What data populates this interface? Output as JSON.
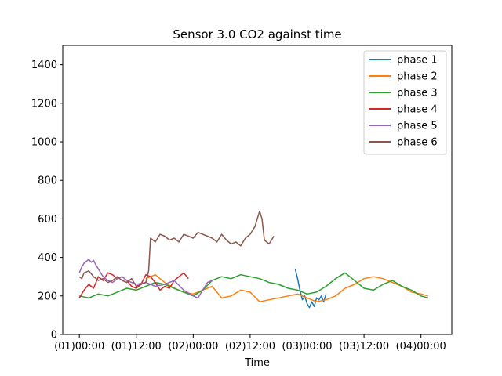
{
  "chart_data": {
    "type": "line",
    "title": "Sensor 3.0 CO2 against  time",
    "xlabel": "Time",
    "ylabel": "",
    "x_unit": "hours",
    "xlim": [
      -3.5,
      78.5
    ],
    "ylim": [
      0,
      1500
    ],
    "xticks": [
      {
        "value": 0,
        "label": "(01)00:00"
      },
      {
        "value": 12,
        "label": "(01)12:00"
      },
      {
        "value": 24,
        "label": "(02)00:00"
      },
      {
        "value": 36,
        "label": "(02)12:00"
      },
      {
        "value": 48,
        "label": "(03)00:00"
      },
      {
        "value": 60,
        "label": "(03)12:00"
      },
      {
        "value": 72,
        "label": "(04)00:00"
      }
    ],
    "yticks": [
      0,
      200,
      400,
      600,
      800,
      1000,
      1200,
      1400
    ],
    "grid": false,
    "legend_position": "top-right",
    "series": [
      {
        "name": "phase 1",
        "color": "#1f77b4",
        "x": [
          45.5,
          46,
          46.5,
          47,
          47.5,
          48,
          48.5,
          49,
          49.5,
          50,
          50.5,
          51,
          51.5,
          52
        ],
        "y": [
          340,
          290,
          230,
          180,
          200,
          160,
          140,
          170,
          145,
          190,
          180,
          200,
          170,
          210
        ]
      },
      {
        "name": "phase 2",
        "color": "#ff7f0e",
        "x": [
          14,
          16,
          18,
          20,
          22,
          24,
          26,
          28,
          30,
          32,
          34,
          36,
          38,
          40,
          42,
          44,
          46,
          48,
          50,
          52,
          54,
          56,
          58,
          60,
          62,
          64,
          66,
          68,
          70,
          72,
          73.5
        ],
        "y": [
          290,
          310,
          270,
          240,
          220,
          210,
          230,
          250,
          190,
          200,
          230,
          220,
          170,
          180,
          190,
          200,
          210,
          190,
          170,
          180,
          200,
          240,
          260,
          290,
          300,
          290,
          270,
          250,
          220,
          210,
          200
        ]
      },
      {
        "name": "phase 3",
        "color": "#2ca02c",
        "x": [
          0,
          2,
          4,
          6,
          8,
          10,
          12,
          14,
          16,
          18,
          20,
          22,
          24,
          26,
          28,
          30,
          32,
          34,
          36,
          38,
          40,
          42,
          44,
          46,
          48,
          50,
          52,
          54,
          56,
          58,
          60,
          62,
          64,
          66,
          68,
          70,
          72,
          73.5
        ],
        "y": [
          200,
          190,
          210,
          200,
          220,
          240,
          230,
          250,
          270,
          260,
          240,
          220,
          200,
          230,
          280,
          300,
          290,
          310,
          300,
          290,
          270,
          260,
          240,
          230,
          210,
          220,
          250,
          290,
          320,
          280,
          240,
          230,
          260,
          280,
          250,
          230,
          200,
          190
        ]
      },
      {
        "name": "phase 4",
        "color": "#d62728",
        "x": [
          0,
          1,
          2,
          3,
          4,
          5,
          6,
          7,
          8,
          9,
          10,
          11,
          12,
          13,
          14,
          15,
          16,
          17,
          18,
          19,
          20,
          21,
          22,
          23
        ],
        "y": [
          190,
          230,
          260,
          240,
          300,
          280,
          320,
          310,
          290,
          300,
          280,
          250,
          240,
          260,
          310,
          300,
          270,
          230,
          250,
          240,
          280,
          300,
          320,
          290
        ]
      },
      {
        "name": "phase 5",
        "color": "#9467bd",
        "x": [
          0,
          0.5,
          1,
          1.5,
          2,
          2.5,
          3,
          3.5,
          4,
          5,
          6,
          7,
          8,
          9,
          10,
          12,
          14,
          16,
          18,
          20,
          22,
          24,
          25,
          26,
          27,
          28
        ],
        "y": [
          320,
          350,
          370,
          380,
          390,
          375,
          385,
          360,
          340,
          300,
          280,
          270,
          290,
          300,
          280,
          260,
          270,
          250,
          260,
          280,
          230,
          200,
          190,
          230,
          270,
          280
        ]
      },
      {
        "name": "phase 6",
        "color": "#8c564b",
        "x": [
          0,
          0.5,
          1,
          2,
          3,
          4,
          5,
          6,
          7,
          8,
          9,
          10,
          11,
          12,
          13,
          14,
          14.6,
          15,
          16,
          17,
          18,
          19,
          20,
          21,
          22,
          23,
          24,
          25,
          26,
          27,
          28,
          29,
          30,
          31,
          32,
          33,
          34,
          35,
          36,
          37,
          37.5,
          38,
          38.5,
          39,
          40,
          41
        ],
        "y": [
          300,
          290,
          320,
          330,
          300,
          280,
          290,
          270,
          280,
          300,
          280,
          270,
          290,
          250,
          260,
          270,
          330,
          500,
          480,
          520,
          510,
          490,
          500,
          480,
          520,
          510,
          500,
          530,
          520,
          510,
          500,
          480,
          520,
          490,
          470,
          480,
          460,
          500,
          520,
          560,
          600,
          640,
          600,
          490,
          470,
          510
        ]
      }
    ]
  }
}
